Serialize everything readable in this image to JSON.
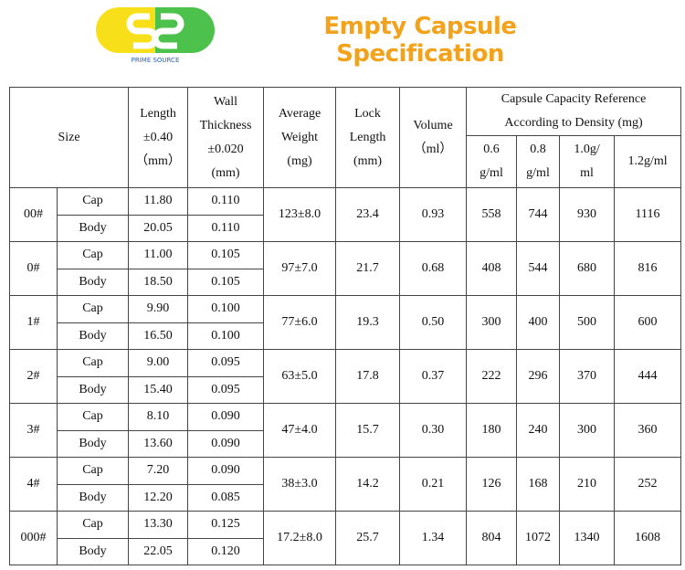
{
  "header": {
    "logo_text": "PRIME SOURCE",
    "title": "Empty Capsule Specification"
  },
  "table": {
    "columns": {
      "size": [
        "Size"
      ],
      "length": [
        "Length",
        "±0.40",
        "（mm）"
      ],
      "wall": [
        "Wall",
        "Thickness",
        "±0.020",
        "(mm)"
      ],
      "avg_weight": [
        "Average",
        "Weight",
        "(mg)"
      ],
      "lock_length": [
        "Lock",
        "Length",
        "(mm)"
      ],
      "volume": [
        "Volume",
        "（ml）"
      ],
      "capacity": [
        "Capsule Capacity Reference",
        "According to Density (mg)"
      ],
      "densities": [
        [
          "0.6",
          "g/ml"
        ],
        [
          "0.8",
          "g/ml"
        ],
        [
          "1.0g/",
          "ml"
        ],
        [
          "1.2g/ml"
        ]
      ]
    },
    "rows": [
      {
        "size": "00#",
        "avg_weight": "123±8.0",
        "lock_length": "23.4",
        "volume": "0.93",
        "capacity": [
          "558",
          "744",
          "930",
          "1116"
        ],
        "parts": [
          {
            "part": "Cap",
            "length": "11.80",
            "wall": "0.110"
          },
          {
            "part": "Body",
            "length": "20.05",
            "wall": "0.110"
          }
        ]
      },
      {
        "size": "0#",
        "avg_weight": "97±7.0",
        "lock_length": "21.7",
        "volume": "0.68",
        "capacity": [
          "408",
          "544",
          "680",
          "816"
        ],
        "parts": [
          {
            "part": "Cap",
            "length": "11.00",
            "wall": "0.105"
          },
          {
            "part": "Body",
            "length": "18.50",
            "wall": "0.105"
          }
        ]
      },
      {
        "size": "1#",
        "avg_weight": "77±6.0",
        "lock_length": "19.3",
        "volume": "0.50",
        "capacity": [
          "300",
          "400",
          "500",
          "600"
        ],
        "parts": [
          {
            "part": "Cap",
            "length": "9.90",
            "wall": "0.100"
          },
          {
            "part": "Body",
            "length": "16.50",
            "wall": "0.100"
          }
        ]
      },
      {
        "size": "2#",
        "avg_weight": "63±5.0",
        "lock_length": "17.8",
        "volume": "0.37",
        "capacity": [
          "222",
          "296",
          "370",
          "444"
        ],
        "parts": [
          {
            "part": "Cap",
            "length": "9.00",
            "wall": "0.095"
          },
          {
            "part": "Body",
            "length": "15.40",
            "wall": "0.095"
          }
        ]
      },
      {
        "size": "3#",
        "avg_weight": "47±4.0",
        "lock_length": "15.7",
        "volume": "0.30",
        "capacity": [
          "180",
          "240",
          "300",
          "360"
        ],
        "parts": [
          {
            "part": "Cap",
            "length": "8.10",
            "wall": "0.090"
          },
          {
            "part": "Body",
            "length": "13.60",
            "wall": "0.090"
          }
        ]
      },
      {
        "size": "4#",
        "avg_weight": "38±3.0",
        "lock_length": "14.2",
        "volume": "0.21",
        "capacity": [
          "126",
          "168",
          "210",
          "252"
        ],
        "parts": [
          {
            "part": "Cap",
            "length": "7.20",
            "wall": "0.090"
          },
          {
            "part": "Body",
            "length": "12.20",
            "wall": "0.085"
          }
        ]
      },
      {
        "size": "000#",
        "avg_weight": "17.2±8.0",
        "lock_length": "25.7",
        "volume": "1.34",
        "capacity": [
          "804",
          "1072",
          "1340",
          "1608"
        ],
        "parts": [
          {
            "part": "Cap",
            "length": "13.30",
            "wall": "0.125"
          },
          {
            "part": "Body",
            "length": "22.05",
            "wall": "0.120"
          }
        ]
      }
    ]
  }
}
